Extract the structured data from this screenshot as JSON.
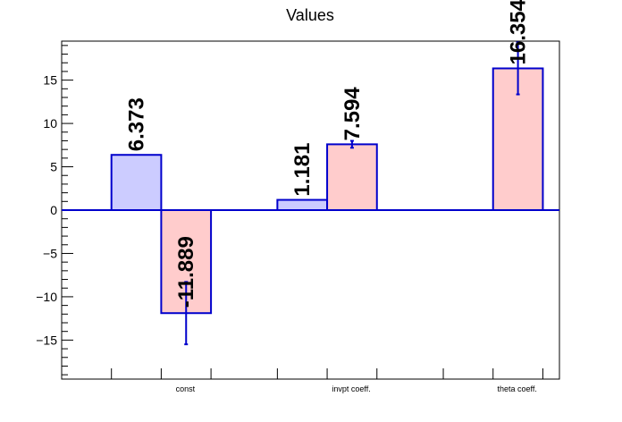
{
  "chart_data": {
    "type": "bar",
    "title": "Values",
    "categories": [
      "const",
      "invpt coeff.",
      "theta coeff."
    ],
    "series": [
      {
        "values": [
          6.373,
          1.181,
          null
        ],
        "labels": [
          "6.373",
          "1.181",
          ""
        ],
        "errors": [
          null,
          null,
          null
        ],
        "fill": "#ccccff"
      },
      {
        "values": [
          -11.889,
          7.594,
          16.354
        ],
        "labels": [
          "-11.889",
          "7.594",
          "16.354"
        ],
        "errors": [
          3.6,
          0.4,
          3.0
        ],
        "fill": "#ffcccc"
      }
    ],
    "ylim": [
      -19.5,
      19.5
    ],
    "yticks": [
      -15,
      -10,
      -5,
      0,
      5,
      10,
      15
    ],
    "ytick_labels": [
      "−15",
      "−10",
      "−5",
      "0",
      "5",
      "10",
      "15"
    ],
    "grid": false,
    "colors": {
      "outline": "#0000cc",
      "zero_line": "#0000cc"
    }
  }
}
